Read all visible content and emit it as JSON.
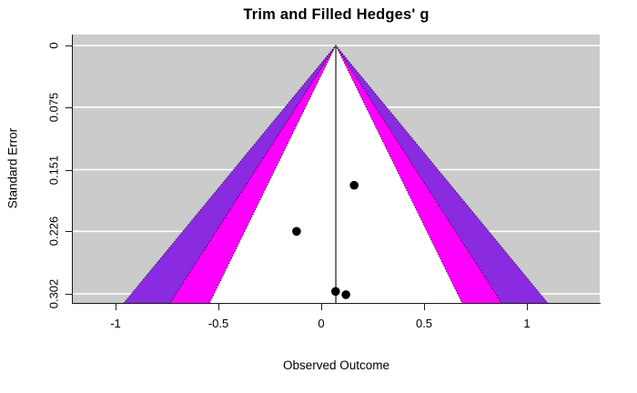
{
  "title": "Trim and Filled Hedges' g",
  "x_axis_title": "Observed Outcome",
  "y_axis_title": "Standard Error",
  "chart_data": {
    "type": "scatter",
    "subtype": "funnel-plot-trim-and-fill",
    "title": "Trim and Filled Hedges' g",
    "xlabel": "Observed Outcome",
    "ylabel": "Standard Error",
    "x_ticks": [
      -1,
      -0.5,
      0,
      0.5,
      1
    ],
    "x_tick_labels": [
      "-1",
      "-0.5",
      "0",
      "0.5",
      "1"
    ],
    "y_ticks": [
      0,
      0.075,
      0.151,
      0.226,
      0.302
    ],
    "y_tick_labels": [
      "0",
      "0.075",
      "0.151",
      "0.226",
      "0.302"
    ],
    "xlim": [
      -1.21,
      1.36
    ],
    "ylim": [
      0,
      0.313
    ],
    "grid": "horizontal-white-lines",
    "estimate": 0.071,
    "points": [
      {
        "x": 0.16,
        "se": 0.17
      },
      {
        "x": -0.12,
        "se": 0.226
      },
      {
        "x": 0.07,
        "se": 0.299
      },
      {
        "x": 0.12,
        "se": 0.303
      }
    ],
    "ci_regions": [
      {
        "level": "99.9%",
        "z": 3.2905,
        "color": "#8A2BE2"
      },
      {
        "level": "99%",
        "z": 2.576,
        "color": "#FF00FF"
      },
      {
        "level": "95%",
        "z": 1.96,
        "color": "#FFFFFF"
      }
    ],
    "colors": {
      "plot_background": "#CBCBCB",
      "gridline": "#FFFFFF",
      "point": "#000000",
      "region_edge": "#000000",
      "estimate_line": "#1a1a1a",
      "axis": "#1a1a1a"
    }
  }
}
